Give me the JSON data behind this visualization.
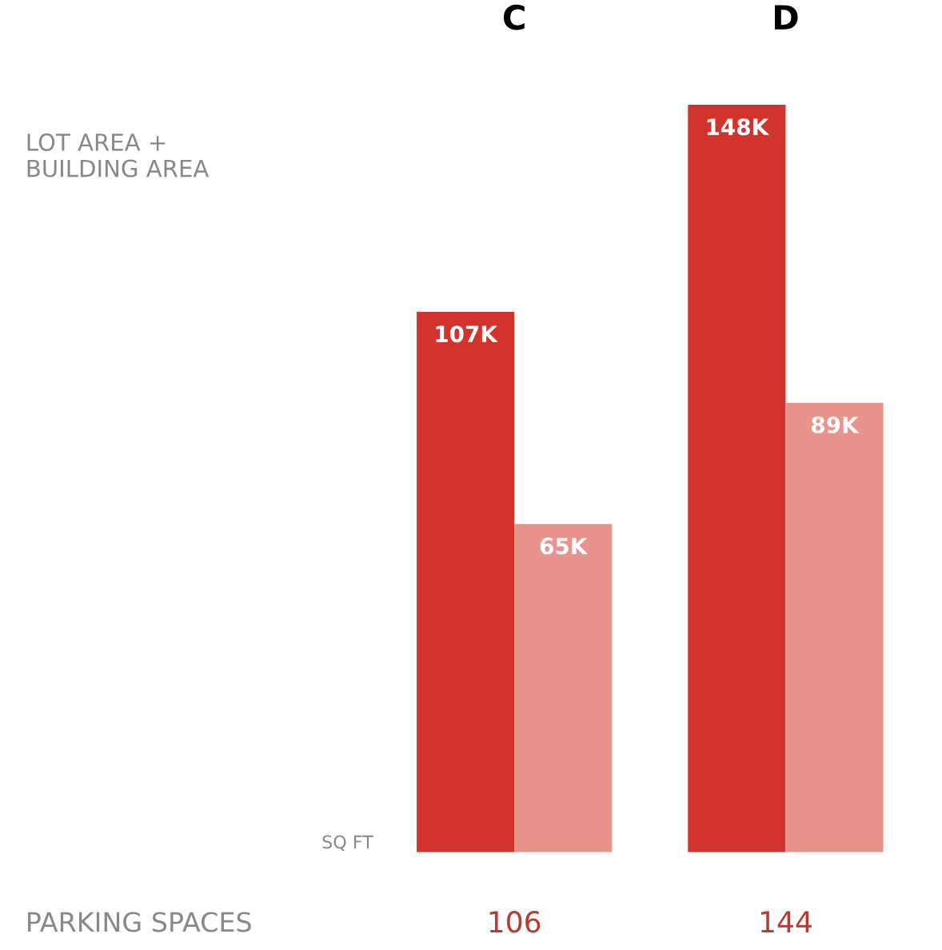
{
  "chart_data": {
    "type": "bar",
    "categories": [
      "C",
      "D"
    ],
    "series": [
      {
        "color": "#d0342c",
        "values": [
          107,
          148
        ],
        "value_labels": [
          "107K",
          "148K"
        ]
      },
      {
        "color": "#e8948c",
        "values": [
          65,
          89
        ],
        "value_labels": [
          "65K",
          "89K"
        ]
      }
    ],
    "annotations": [
      "LOT AREA +\nBUILDING AREA",
      "SQ FT",
      "PARKING SPACES",
      "106",
      "144"
    ],
    "legend": false,
    "grid": false
  }
}
